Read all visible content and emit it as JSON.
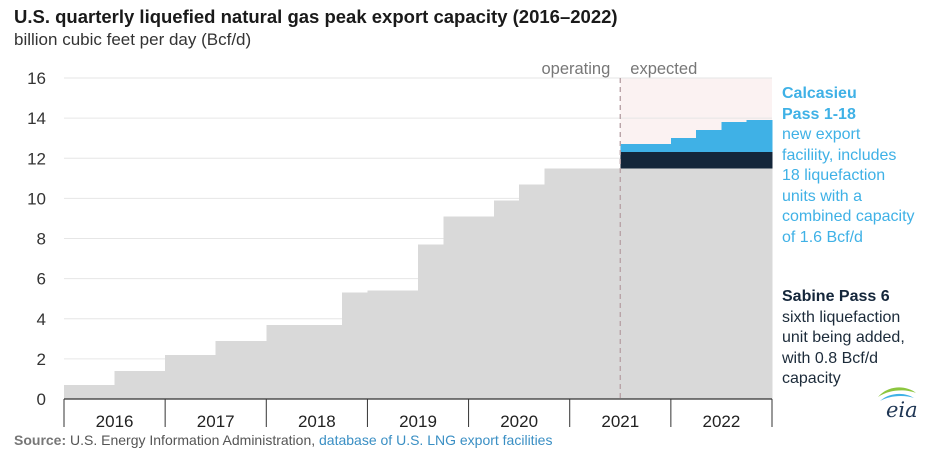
{
  "header": {
    "title": "U.S. quarterly liquefied natural gas peak export capacity (2016–2022)",
    "subtitle": "billion cubic feet per day (Bcf/d)"
  },
  "chart_data": {
    "type": "area",
    "title": "U.S. quarterly liquefied natural gas peak export capacity (2016–2022)",
    "ylabel": "billion cubic feet per day (Bcf/d)",
    "ylim": [
      0,
      16
    ],
    "yticks": [
      "0",
      "2",
      "4",
      "6",
      "8",
      "10",
      "12",
      "14",
      "16"
    ],
    "x_categories": [
      "2016",
      "2017",
      "2018",
      "2019",
      "2020",
      "2021",
      "2022"
    ],
    "period_labels": {
      "operating": "operating",
      "expected": "expected"
    },
    "quarters": [
      "2016 Q1",
      "2016 Q2",
      "2016 Q3",
      "2016 Q4",
      "2017 Q1",
      "2017 Q2",
      "2017 Q3",
      "2017 Q4",
      "2018 Q1",
      "2018 Q2",
      "2018 Q3",
      "2018 Q4",
      "2019 Q1",
      "2019 Q2",
      "2019 Q3",
      "2019 Q4",
      "2020 Q1",
      "2020 Q2",
      "2020 Q3",
      "2020 Q4",
      "2021 Q1",
      "2021 Q2",
      "2021 Q3",
      "2021 Q4",
      "2022 Q1",
      "2022 Q2",
      "2022 Q3",
      "2022 Q4"
    ],
    "series": [
      {
        "values": [
          0.7,
          0.7,
          1.4,
          1.4,
          2.2,
          2.2,
          2.9,
          2.9,
          3.7,
          3.7,
          3.7,
          5.3,
          5.4,
          5.4,
          7.7,
          9.1,
          9.1,
          9.9,
          10.7,
          11.5,
          11.5,
          11.5,
          11.5,
          11.5,
          11.5,
          11.5,
          11.5,
          11.5
        ],
        "color": "#d9d9d9"
      },
      {
        "values": [
          0,
          0,
          0,
          0,
          0,
          0,
          0,
          0,
          0,
          0,
          0,
          0,
          0,
          0,
          0,
          0,
          0,
          0,
          0,
          0,
          0,
          0,
          0.8,
          0.8,
          0.8,
          0.8,
          0.8,
          0.8
        ],
        "color": "#14263a"
      },
      {
        "values": [
          0,
          0,
          0,
          0,
          0,
          0,
          0,
          0,
          0,
          0,
          0,
          0,
          0,
          0,
          0,
          0,
          0,
          0,
          0,
          0,
          0,
          0,
          0.4,
          0.4,
          0.7,
          1.1,
          1.5,
          1.6
        ],
        "color": "#3fb1e6"
      }
    ],
    "expected_start_quarter": "2021 Q3",
    "colors": {
      "expected_band": "#fbf2f2",
      "divider": "#b9a3a7"
    }
  },
  "annotations": {
    "calcasieu": {
      "title": "Calcasieu\nPass 1-18",
      "body": "new export\nfaciliity, includes\n18 liquefaction\nunits with a\ncombined capacity\nof 1.6 Bcf/d"
    },
    "sabine": {
      "title": "Sabine Pass 6",
      "body": "sixth liquefaction\nunit being added,\nwith 0.8 Bcf/d\ncapacity"
    }
  },
  "footer": {
    "source_label": "Source:",
    "source_text": "U.S. Energy Information Administration,",
    "source_link": "database of U.S. LNG export facilities"
  },
  "logo": {
    "text": "eia"
  }
}
